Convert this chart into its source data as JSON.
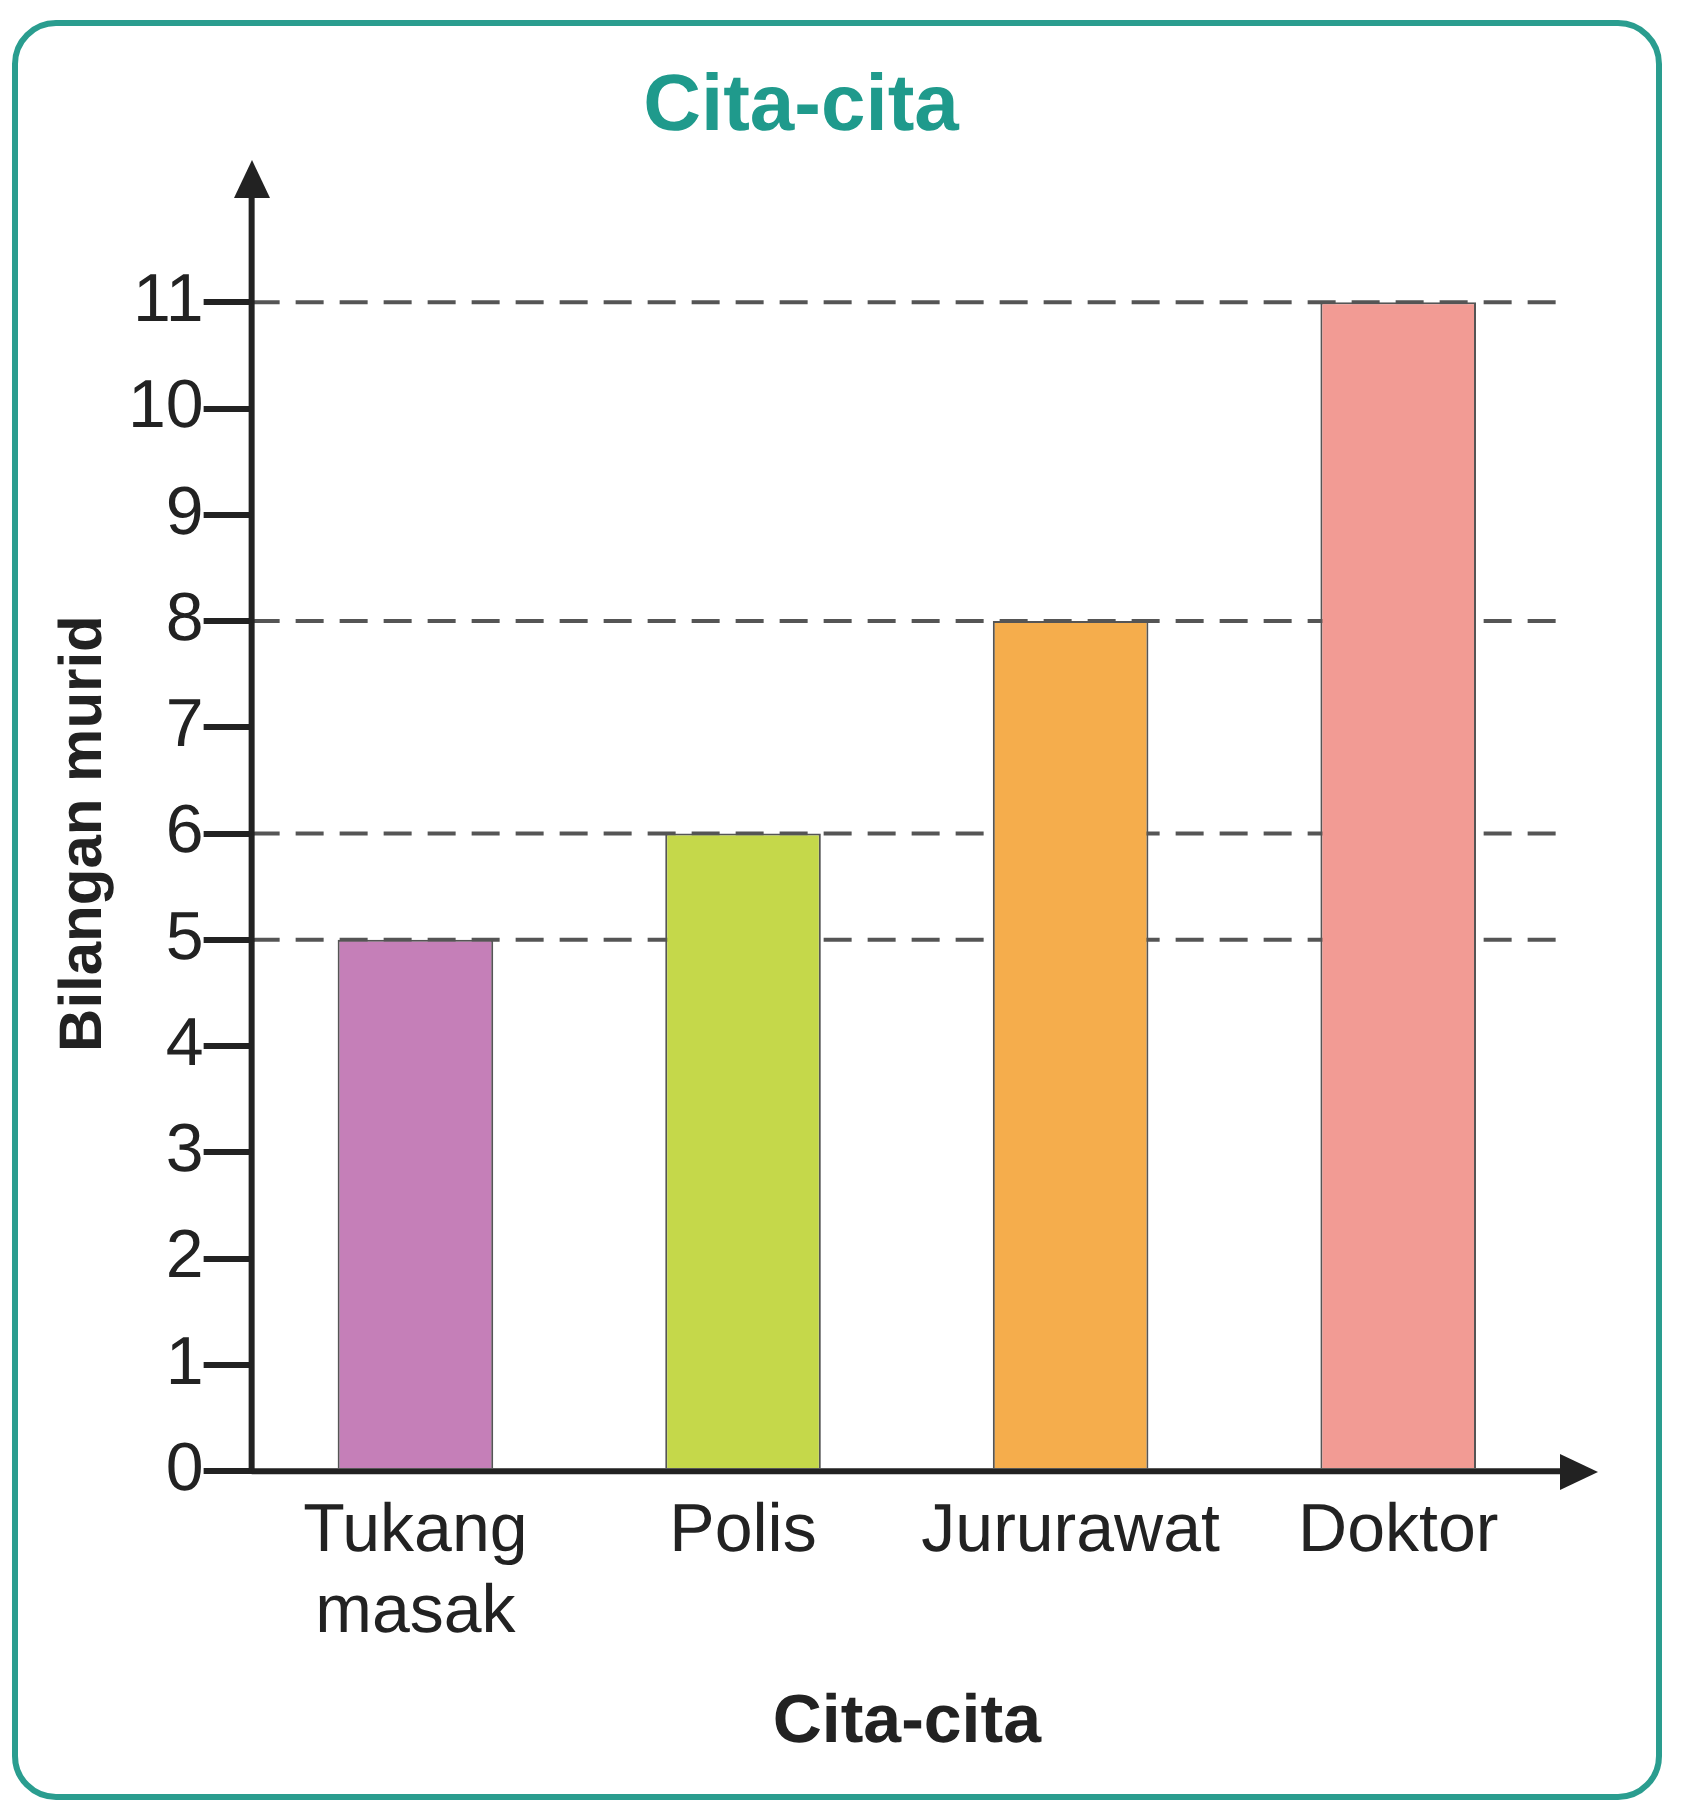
{
  "chart_data": {
    "type": "bar",
    "title": "Cita-cita",
    "xlabel": "Cita-cita",
    "ylabel": "Bilangan murid",
    "categories": [
      "Tukang masak",
      "Polis",
      "Jururawat",
      "Doktor"
    ],
    "values": [
      5,
      6,
      8,
      11
    ],
    "colors": [
      "#c57fb8",
      "#c5d84a",
      "#f5ad4c",
      "#f29b94"
    ],
    "ylim": [
      0,
      12
    ],
    "yticks": [
      0,
      1,
      2,
      3,
      4,
      5,
      6,
      7,
      8,
      9,
      10,
      11
    ],
    "grid": false,
    "legend": false,
    "ref_lines": [
      {
        "axis": "y",
        "value": 5,
        "color": "#555555",
        "line_style": "dashed"
      },
      {
        "axis": "y",
        "value": 6,
        "color": "#555555",
        "line_style": "dashed"
      },
      {
        "axis": "y",
        "value": 8,
        "color": "#555555",
        "line_style": "dashed"
      },
      {
        "axis": "y",
        "value": 11,
        "color": "#555555",
        "line_style": "dashed"
      }
    ]
  }
}
